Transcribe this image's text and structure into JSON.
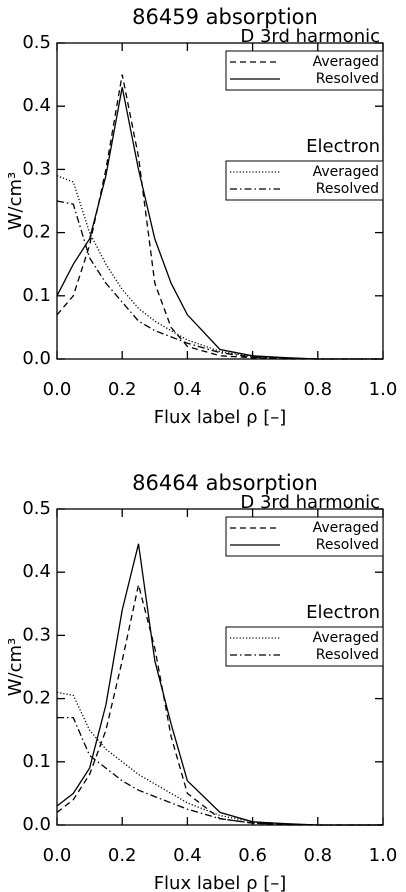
{
  "chart_data": [
    {
      "type": "line",
      "title": "86459 absorption",
      "xlabel": "Flux label ρ [–]",
      "ylabel": "W/cm³",
      "x": [
        0,
        0.05,
        0.1,
        0.15,
        0.2,
        0.25,
        0.3,
        0.35,
        0.4,
        0.5,
        0.6,
        0.7,
        0.8,
        0.9,
        1.0
      ],
      "xlim": [
        0,
        1
      ],
      "ylim": [
        0,
        0.5
      ],
      "xticks": [
        {
          "value": 0,
          "label": "0.0"
        },
        0.2,
        0.4,
        0.6,
        0.8,
        {
          "value": 1,
          "label": "1.0"
        }
      ],
      "yticks": [
        {
          "value": 0,
          "label": "0.0"
        },
        0.1,
        0.2,
        0.3,
        0.4,
        0.5
      ],
      "series": [
        {
          "name": "Averaged",
          "group": "D 3rd harmonic",
          "color": "#000000",
          "linestyle": "dashed",
          "values": [
            0.07,
            0.1,
            0.18,
            0.3,
            0.45,
            0.32,
            0.12,
            0.05,
            0.02,
            0.005,
            0.002,
            0,
            0,
            0,
            0
          ]
        },
        {
          "name": "Resolved",
          "group": "D 3rd harmonic",
          "color": "#000000",
          "linestyle": "solid",
          "values": [
            0.1,
            0.15,
            0.19,
            0.29,
            0.43,
            0.3,
            0.19,
            0.12,
            0.07,
            0.015,
            0.005,
            0.002,
            0,
            0,
            0
          ]
        },
        {
          "name": "Averaged",
          "group": "Electron",
          "color": "#000000",
          "linestyle": "dotted",
          "values": [
            0.29,
            0.28,
            0.2,
            0.15,
            0.11,
            0.08,
            0.06,
            0.045,
            0.03,
            0.012,
            0.004,
            0.001,
            0,
            0,
            0
          ]
        },
        {
          "name": "Resolved",
          "group": "Electron",
          "color": "#000000",
          "linestyle": "dashdot",
          "values": [
            0.25,
            0.245,
            0.16,
            0.12,
            0.09,
            0.06,
            0.045,
            0.035,
            0.025,
            0.01,
            0.003,
            0.001,
            0,
            0,
            0
          ]
        }
      ]
    },
    {
      "type": "line",
      "title": "86464 absorption",
      "xlabel": "Flux label ρ [–]",
      "ylabel": "W/cm³",
      "x": [
        0,
        0.05,
        0.1,
        0.15,
        0.2,
        0.25,
        0.3,
        0.35,
        0.4,
        0.5,
        0.6,
        0.7,
        0.8,
        0.9,
        1.0
      ],
      "xlim": [
        0,
        1
      ],
      "ylim": [
        0,
        0.5
      ],
      "xticks": [
        {
          "value": 0,
          "label": "0.0"
        },
        0.2,
        0.4,
        0.6,
        0.8,
        {
          "value": 1,
          "label": "1.0"
        }
      ],
      "yticks": [
        {
          "value": 0,
          "label": "0.0"
        },
        0.1,
        0.2,
        0.3,
        0.4,
        0.5
      ],
      "series": [
        {
          "name": "Averaged",
          "group": "D 3rd harmonic",
          "color": "#000000",
          "linestyle": "dashed",
          "values": [
            0.02,
            0.04,
            0.08,
            0.15,
            0.26,
            0.38,
            0.28,
            0.14,
            0.05,
            0.01,
            0.003,
            0,
            0,
            0,
            0
          ]
        },
        {
          "name": "Resolved",
          "group": "D 3rd harmonic",
          "color": "#000000",
          "linestyle": "solid",
          "values": [
            0.03,
            0.05,
            0.09,
            0.19,
            0.34,
            0.445,
            0.26,
            0.16,
            0.07,
            0.02,
            0.005,
            0.002,
            0,
            0,
            0
          ]
        },
        {
          "name": "Averaged",
          "group": "Electron",
          "color": "#000000",
          "linestyle": "dotted",
          "values": [
            0.21,
            0.205,
            0.15,
            0.12,
            0.1,
            0.08,
            0.065,
            0.05,
            0.035,
            0.015,
            0.005,
            0.001,
            0,
            0,
            0
          ]
        },
        {
          "name": "Resolved",
          "group": "Electron",
          "color": "#000000",
          "linestyle": "dashdot",
          "values": [
            0.17,
            0.17,
            0.11,
            0.09,
            0.07,
            0.055,
            0.045,
            0.035,
            0.025,
            0.01,
            0.003,
            0.001,
            0,
            0,
            0
          ]
        }
      ]
    }
  ]
}
